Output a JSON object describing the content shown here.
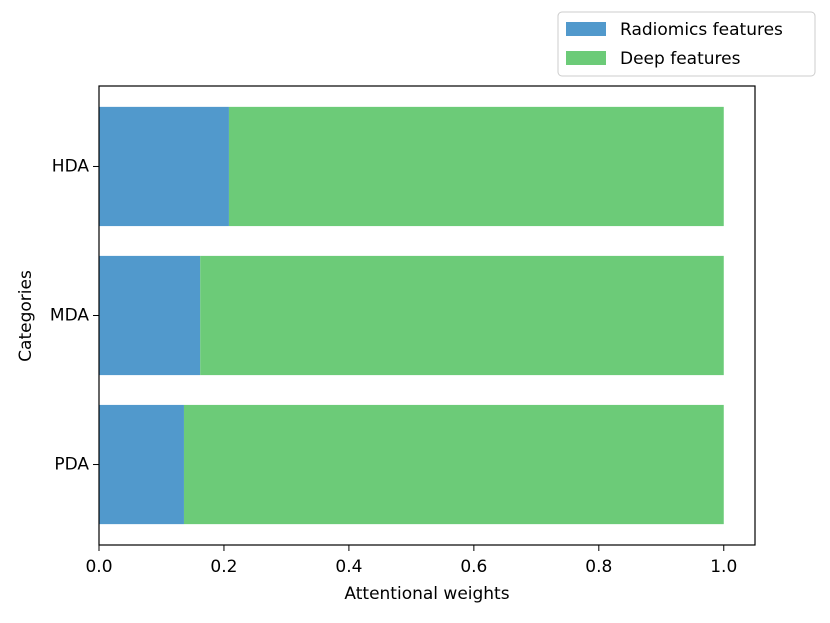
{
  "chart_data": {
    "type": "barh_stacked",
    "categories": [
      "PDA",
      "MDA",
      "HDA"
    ],
    "series": [
      {
        "name": "Radiomics features",
        "color": "#5199cc",
        "values": [
          0.136,
          0.162,
          0.208
        ]
      },
      {
        "name": "Deep features",
        "color": "#6ccb78",
        "values": [
          0.864,
          0.838,
          0.792
        ]
      }
    ],
    "xlabel": "Attentional weights",
    "ylabel": "Categories",
    "xlim": [
      0,
      1.05
    ],
    "xticks": [
      {
        "value": 0,
        "label": "0.0"
      },
      0.2,
      0.4,
      0.6,
      0.8,
      {
        "value": 1,
        "label": "1.0"
      }
    ],
    "legend": "upper right"
  }
}
